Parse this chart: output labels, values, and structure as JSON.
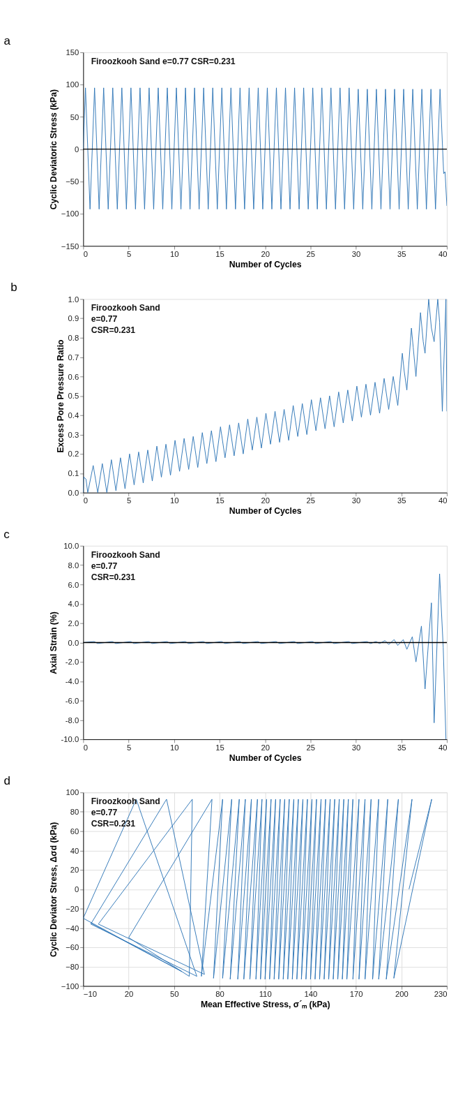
{
  "chart_data": [
    {
      "type": "line",
      "title": "a",
      "xlabel": "Number of Cycles",
      "ylabel": "Cyclic Deviatoric Stress (kPa)",
      "annotations": [
        "Firoozkooh Sand e=0.77   CSR=0.231"
      ],
      "xlim": [
        0,
        40
      ],
      "xticks": [
        0,
        5,
        10,
        15,
        20,
        25,
        30,
        35,
        40
      ],
      "ylim": [
        -150,
        150
      ],
      "yticks": [
        -150,
        -100,
        -50,
        0,
        50,
        100,
        150
      ],
      "grid": false,
      "ref_lines": [
        {
          "axis": "y",
          "value": 0,
          "color": "#000000"
        }
      ],
      "series": [
        {
          "color": "#2e75b6",
          "x": [
            0,
            0.25,
            0.75,
            1.25,
            1.75,
            2.25,
            2.75,
            3.25,
            3.75,
            4.25,
            4.75,
            5.25,
            5.75,
            6.25,
            6.75,
            7.25,
            7.75,
            8.25,
            8.75,
            9.25,
            9.75,
            10.25,
            10.75,
            11.25,
            11.75,
            12.25,
            12.75,
            13.25,
            13.75,
            14.25,
            14.75,
            15.25,
            15.75,
            16.25,
            16.75,
            17.25,
            17.75,
            18.25,
            18.75,
            19.25,
            19.75,
            20.25,
            20.75,
            21.25,
            21.75,
            22.25,
            22.75,
            23.25,
            23.75,
            24.25,
            24.75,
            25.25,
            25.75,
            26.25,
            26.75,
            27.25,
            27.75,
            28.25,
            28.75,
            29.25,
            29.75,
            30.25,
            30.75,
            31.25,
            31.75,
            32.25,
            32.75,
            33.25,
            33.75,
            34.25,
            34.75,
            35.25,
            35.75,
            36.25,
            36.75,
            37.25,
            37.75,
            38.25,
            38.75,
            39.25,
            39.65,
            39.8,
            40
          ],
          "values": [
            0,
            95,
            -93,
            95,
            -93,
            95,
            -93,
            95,
            -93,
            95,
            -93,
            95,
            -93,
            95,
            -93,
            95,
            -93,
            95,
            -93,
            95,
            -93,
            95,
            -93,
            95,
            -93,
            95,
            -93,
            95,
            -93,
            95,
            -93,
            95,
            -93,
            95,
            -93,
            95,
            -93,
            95,
            -93,
            95,
            -93,
            95,
            -93,
            95,
            -93,
            95,
            -93,
            95,
            -93,
            95,
            -93,
            95,
            -93,
            95,
            -93,
            95,
            -93,
            95,
            -93,
            95,
            -93,
            93,
            -93,
            93,
            -93,
            93,
            -93,
            93,
            -93,
            93,
            -93,
            93,
            -93,
            93,
            -93,
            93,
            -93,
            93,
            -93,
            93,
            -38,
            -35,
            -88
          ]
        }
      ]
    },
    {
      "type": "line",
      "title": "b",
      "xlabel": "Number of Cycles",
      "ylabel": "Excess Pore Pressure Ratio",
      "annotations": [
        "Firoozkooh Sand",
        "e=0.77",
        "CSR=0.231"
      ],
      "xlim": [
        0,
        40
      ],
      "xticks": [
        0,
        5,
        10,
        15,
        20,
        25,
        30,
        35,
        40
      ],
      "ylim": [
        0,
        1
      ],
      "yticks": [
        {
          "value": 0,
          "label": "0.0"
        },
        0.1,
        0.2,
        0.3,
        0.4,
        0.5,
        0.6,
        0.7,
        0.8,
        0.9,
        {
          "value": 1,
          "label": "1.0"
        }
      ],
      "grid": false,
      "series": [
        {
          "color": "#2e75b6",
          "x": [
            0,
            0.05,
            0.3,
            0.5,
            1.1,
            1.6,
            2.1,
            2.6,
            3.1,
            3.6,
            4.1,
            4.6,
            5.1,
            5.6,
            6.1,
            6.6,
            7.1,
            7.6,
            8.1,
            8.6,
            9.1,
            9.6,
            10.1,
            10.6,
            11.1,
            11.6,
            12.1,
            12.6,
            13.1,
            13.6,
            14.1,
            14.6,
            15.1,
            15.6,
            16.1,
            16.6,
            17.1,
            17.6,
            18.1,
            18.6,
            19.1,
            19.6,
            20.1,
            20.6,
            21.1,
            21.6,
            22.1,
            22.6,
            23.1,
            23.6,
            24.1,
            24.6,
            25.1,
            25.6,
            26.1,
            26.6,
            27.1,
            27.6,
            28.1,
            28.6,
            29.1,
            29.6,
            30.1,
            30.6,
            31.1,
            31.6,
            32.1,
            32.6,
            33.1,
            33.6,
            34.1,
            34.6,
            35.1,
            35.3,
            35.6,
            36.1,
            36.3,
            36.6,
            37.1,
            37.4,
            37.6,
            38,
            38.3,
            38.6,
            39,
            39.2,
            39.5,
            39.9,
            40
          ],
          "values": [
            0,
            0.08,
            0.07,
            0,
            0.14,
            0,
            0.15,
            0,
            0.17,
            0.01,
            0.18,
            0.02,
            0.2,
            0.04,
            0.21,
            0.05,
            0.22,
            0.06,
            0.24,
            0.08,
            0.25,
            0.09,
            0.27,
            0.11,
            0.28,
            0.12,
            0.29,
            0.13,
            0.31,
            0.15,
            0.32,
            0.16,
            0.34,
            0.18,
            0.35,
            0.19,
            0.36,
            0.2,
            0.38,
            0.22,
            0.39,
            0.23,
            0.41,
            0.25,
            0.42,
            0.26,
            0.43,
            0.27,
            0.45,
            0.29,
            0.46,
            0.3,
            0.48,
            0.32,
            0.49,
            0.33,
            0.5,
            0.34,
            0.52,
            0.36,
            0.53,
            0.37,
            0.55,
            0.39,
            0.56,
            0.4,
            0.57,
            0.41,
            0.59,
            0.43,
            0.6,
            0.45,
            0.72,
            0.63,
            0.53,
            0.85,
            0.75,
            0.6,
            0.93,
            0.78,
            0.72,
            1,
            0.85,
            0.78,
            1,
            0.88,
            0.42,
            1,
            0.42
          ]
        }
      ]
    },
    {
      "type": "line",
      "title": "c",
      "xlabel": "Number of  Cycles",
      "ylabel": "Axial Strain (%)",
      "annotations": [
        "Firoozkooh Sand",
        "e=0.77",
        "CSR=0.231"
      ],
      "xlim": [
        0,
        40
      ],
      "xticks": [
        0,
        5,
        10,
        15,
        20,
        25,
        30,
        35,
        40
      ],
      "ylim": [
        -10,
        10
      ],
      "yticks": [
        {
          "value": -10,
          "label": "-10.0"
        },
        {
          "value": -8,
          "label": "-8.0"
        },
        {
          "value": -6,
          "label": "-6.0"
        },
        {
          "value": -4,
          "label": "-4.0"
        },
        {
          "value": -2,
          "label": "-2.0"
        },
        {
          "value": 0,
          "label": "0.0"
        },
        {
          "value": 2,
          "label": "2.0"
        },
        {
          "value": 4,
          "label": "4.0"
        },
        {
          "value": 6,
          "label": "6.0"
        },
        {
          "value": 8,
          "label": "8.0"
        },
        {
          "value": 10,
          "label": "10.0"
        }
      ],
      "grid": false,
      "ref_lines": [
        {
          "axis": "y",
          "value": 0,
          "color": "#000000"
        }
      ],
      "series": [
        {
          "color": "#2e75b6",
          "x": [
            0,
            1.2,
            1.6,
            3.2,
            3.6,
            5.2,
            5.6,
            7.2,
            7.6,
            9.2,
            9.6,
            11.2,
            11.6,
            13.2,
            13.6,
            15.2,
            15.6,
            17.2,
            17.6,
            19.2,
            19.6,
            21.2,
            21.6,
            23.2,
            23.6,
            25.2,
            25.6,
            27.2,
            27.6,
            29.2,
            29.6,
            31.2,
            31.6,
            32.2,
            32.6,
            33.2,
            33.6,
            34.2,
            34.6,
            35.2,
            35.6,
            36.2,
            36.6,
            37.2,
            37.6,
            38.3,
            38.6,
            39.2,
            39.6,
            39.9
          ],
          "values": [
            0,
            0.1,
            -0.1,
            0.1,
            -0.1,
            0.1,
            -0.1,
            0.1,
            -0.1,
            0.1,
            -0.1,
            0.1,
            -0.1,
            0.1,
            -0.1,
            0.1,
            -0.1,
            0.1,
            -0.1,
            0.1,
            -0.1,
            0.1,
            -0.1,
            0.1,
            -0.1,
            0.1,
            -0.1,
            0.1,
            -0.1,
            0.1,
            -0.1,
            0.1,
            -0.1,
            0.1,
            -0.1,
            0.2,
            -0.2,
            0.3,
            -0.3,
            0.3,
            -0.7,
            0.6,
            -2,
            1.7,
            -4.8,
            4.1,
            -8.3,
            7.1,
            -0.5,
            -10
          ]
        }
      ]
    },
    {
      "type": "line",
      "title": "d",
      "xlabel": "Mean Effective Stress, σ´ₘ (kPa)",
      "ylabel": "Cyclic Deviator Stress,  Δσd (kPa)",
      "annotations": [
        "Firoozkooh Sand",
        "e=0.77",
        "CSR=0.231"
      ],
      "xlim": [
        -10,
        230
      ],
      "xticks": [
        -10,
        20,
        50,
        80,
        110,
        140,
        170,
        200,
        230
      ],
      "ylim": [
        -100,
        100
      ],
      "yticks": [
        -100,
        -80,
        -60,
        -40,
        -20,
        0,
        20,
        40,
        60,
        80,
        100
      ],
      "grid": true,
      "series": [
        {
          "color": "#2e75b6",
          "x": [
            205,
            220,
            195,
            207,
            190,
            198,
            185,
            191,
            181,
            185,
            176,
            180,
            172,
            176,
            168,
            172,
            164,
            168,
            161,
            165,
            158,
            162,
            155,
            159,
            152,
            156,
            149,
            153,
            146,
            150,
            143,
            147,
            140,
            144,
            137,
            141,
            134,
            138,
            131,
            135,
            128,
            132,
            125,
            129,
            122,
            126,
            119,
            123,
            116,
            120,
            113,
            117,
            110,
            114,
            107,
            111,
            104,
            108,
            100,
            105,
            96,
            101,
            92,
            97,
            87,
            93,
            82,
            88,
            76,
            82,
            68,
            75,
            20,
            60,
            62,
            0,
            70,
            45,
            -5,
            65,
            25,
            -10,
            55,
            -5
          ],
          "values": [
            0,
            93,
            -92,
            93,
            -93,
            93,
            -93,
            93,
            -93,
            93,
            -93,
            93,
            -93,
            93,
            -93,
            93,
            -93,
            93,
            -93,
            93,
            -93,
            93,
            -93,
            93,
            -93,
            93,
            -93,
            93,
            -93,
            93,
            -93,
            93,
            -93,
            93,
            -93,
            93,
            -93,
            93,
            -93,
            93,
            -93,
            93,
            -93,
            93,
            -93,
            93,
            -93,
            93,
            -93,
            93,
            -93,
            93,
            -93,
            93,
            -93,
            93,
            -93,
            93,
            -93,
            93,
            -93,
            93,
            -93,
            93,
            -93,
            93,
            -92,
            93,
            -92,
            93,
            -90,
            93,
            -50,
            -90,
            93,
            -36,
            -88,
            93,
            -36,
            -90,
            93,
            -30,
            -85,
            -35
          ]
        }
      ]
    }
  ]
}
